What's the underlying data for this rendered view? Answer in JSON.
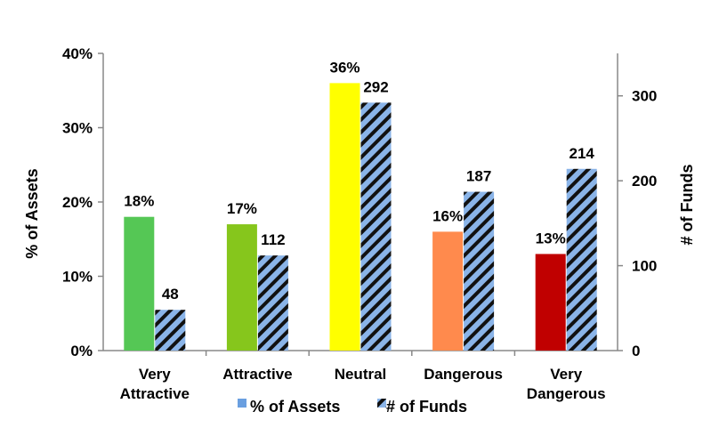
{
  "chart_data": {
    "type": "bar",
    "categories": [
      [
        "Very",
        "Attractive"
      ],
      [
        "Attractive"
      ],
      [
        "Neutral"
      ],
      [
        "Dangerous"
      ],
      [
        "Very",
        "Dangerous"
      ]
    ],
    "series": [
      {
        "name": "% of Assets",
        "axis": "left",
        "values": [
          18,
          17,
          36,
          16,
          13
        ],
        "labels": [
          "18%",
          "17%",
          "36%",
          "16%",
          "13%"
        ],
        "colors": [
          "#55c755",
          "#86c61c",
          "#ffff00",
          "#ff8a4d",
          "#c00000"
        ],
        "legend_color": "#6a9fe0"
      },
      {
        "name": "# of Funds",
        "axis": "right",
        "values": [
          48,
          112,
          292,
          187,
          214
        ],
        "labels": [
          "48",
          "112",
          "292",
          "187",
          "214"
        ],
        "pattern": "diagonal-stripes",
        "pattern_colors": [
          "#8ab4e8",
          "#111111"
        ]
      }
    ],
    "ylabel": "% of Assets",
    "y2label": "# of Funds",
    "ylim": [
      0,
      40
    ],
    "y2lim": [
      0,
      350
    ],
    "yticks": [
      0,
      10,
      20,
      30,
      40
    ],
    "ytick_labels": [
      "0%",
      "10%",
      "20%",
      "30%",
      "40%"
    ],
    "y2ticks": [
      0,
      100,
      200,
      300
    ],
    "y2tick_labels": [
      "0",
      "100",
      "200",
      "300"
    ],
    "grid": false,
    "legend_position": "bottom"
  }
}
